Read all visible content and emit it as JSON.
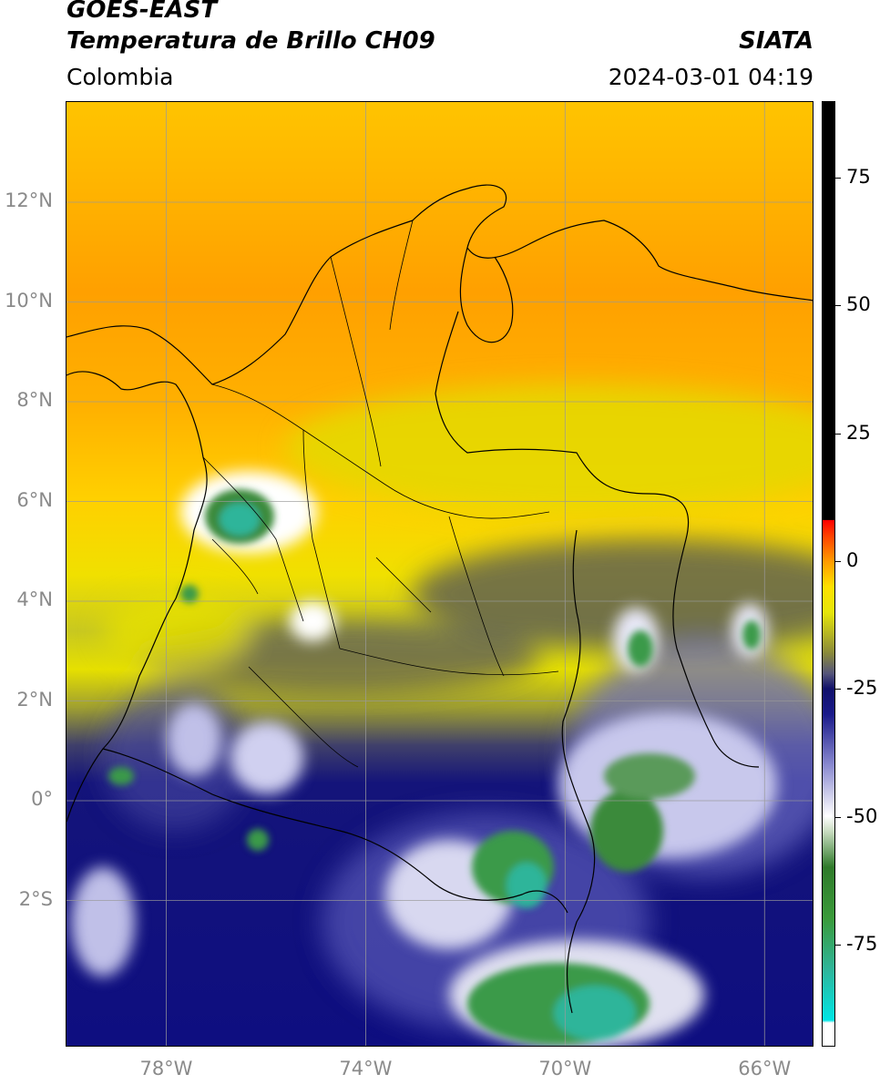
{
  "header": {
    "title_line1": "GOES-EAST",
    "title_line2": "Temperatura de Brillo CH09",
    "source": "SIATA",
    "region": "Colombia",
    "timestamp": "2024-03-01 04:19"
  },
  "map": {
    "lon_range": [
      -80,
      -65
    ],
    "lat_range": [
      -5,
      14
    ],
    "lon_ticks": [
      {
        "value": -78,
        "label": "78°W"
      },
      {
        "value": -74,
        "label": "74°W"
      },
      {
        "value": -70,
        "label": "70°W"
      },
      {
        "value": -66,
        "label": "66°W"
      }
    ],
    "lat_ticks": [
      {
        "value": 12,
        "label": "12°N"
      },
      {
        "value": 10,
        "label": "10°N"
      },
      {
        "value": 8,
        "label": "8°N"
      },
      {
        "value": 6,
        "label": "6°N"
      },
      {
        "value": 4,
        "label": "4°N"
      },
      {
        "value": 2,
        "label": "2°N"
      },
      {
        "value": 0,
        "label": "0°"
      },
      {
        "value": -2,
        "label": "2°S"
      }
    ],
    "grid": true
  },
  "colorbar": {
    "range": [
      -95,
      90
    ],
    "ticks": [
      {
        "value": 75,
        "label": "75"
      },
      {
        "value": 50,
        "label": "50"
      },
      {
        "value": 25,
        "label": "25"
      },
      {
        "value": 0,
        "label": "0"
      },
      {
        "value": -25,
        "label": "-25"
      },
      {
        "value": -50,
        "label": "-50"
      },
      {
        "value": -75,
        "label": "-75"
      }
    ],
    "stops": [
      {
        "value": -95,
        "color": "#ffffff"
      },
      {
        "value": -90.5,
        "color": "#ffffff"
      },
      {
        "value": -90,
        "color": "#00e5e5"
      },
      {
        "value": -80,
        "color": "#2fb59a"
      },
      {
        "value": -70,
        "color": "#3a9a3a"
      },
      {
        "value": -60,
        "color": "#2f7a2a"
      },
      {
        "value": -53,
        "color": "#c8dcc0"
      },
      {
        "value": -50,
        "color": "#ffffff"
      },
      {
        "value": -40,
        "color": "#8a8ad0"
      },
      {
        "value": -30,
        "color": "#1a1a8a"
      },
      {
        "value": -25,
        "color": "#10106a"
      },
      {
        "value": -22,
        "color": "#55557a"
      },
      {
        "value": -18,
        "color": "#8a8a3a"
      },
      {
        "value": -10,
        "color": "#e6e60a"
      },
      {
        "value": -5,
        "color": "#ffe000"
      },
      {
        "value": 0,
        "color": "#ff9a00"
      },
      {
        "value": 5,
        "color": "#ff4000"
      },
      {
        "value": 8,
        "color": "#ff0000"
      },
      {
        "value": 8.1,
        "color": "#000000"
      },
      {
        "value": 90,
        "color": "#000000"
      }
    ]
  }
}
